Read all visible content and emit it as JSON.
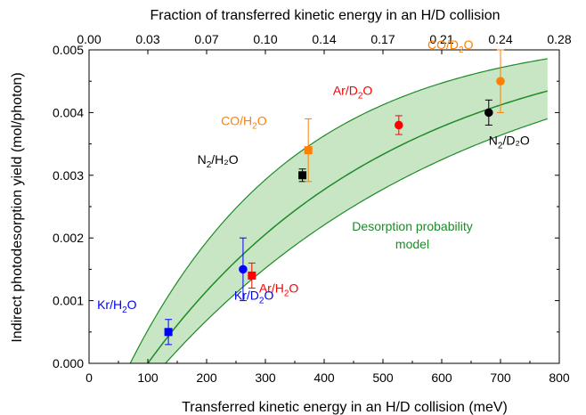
{
  "chart_data": {
    "type": "scatter",
    "xlabel": "Transferred kinetic energy in an H/D collision (meV)",
    "ylabel": "Indirect photodesorption yield (mol/photon)",
    "x2label": "Fraction of transferred kinetic energy in an H/D collision",
    "xlim": [
      0,
      800
    ],
    "ylim": [
      0,
      0.005
    ],
    "xticks": [
      "0",
      "100",
      "200",
      "300",
      "400",
      "500",
      "600",
      "700",
      "800"
    ],
    "yticks": [
      "0.000",
      "0.001",
      "0.002",
      "0.003",
      "0.004",
      "0.005"
    ],
    "x2ticks": [
      "0.00",
      "0.03",
      "0.07",
      "0.10",
      "0.14",
      "0.17",
      "0.21",
      "0.24",
      "0.28"
    ],
    "colors": {
      "band": "#c8e6c4",
      "model": "#1e8a2a",
      "kr": "#0000ff",
      "ar": "#ff0000",
      "co": "#ff8000",
      "n2": "#000000"
    },
    "points": [
      {
        "label": "Kr/H2O",
        "text": "Kr/H",
        "sub": "2",
        "tail": "O",
        "x": 135,
        "y": 0.0005,
        "err": 0.0002,
        "marker": "square",
        "color": "#0000ff"
      },
      {
        "label": "Kr/D2O",
        "text": "Kr/D",
        "sub": "2",
        "tail": "O",
        "x": 262,
        "y": 0.0015,
        "err": 0.0005,
        "marker": "circle",
        "color": "#0000ff"
      },
      {
        "label": "Ar/H2O",
        "text": "Ar/H",
        "sub": "2",
        "tail": "O",
        "x": 277,
        "y": 0.0014,
        "err": 0.0002,
        "marker": "square",
        "color": "#ff0000"
      },
      {
        "label": "N2/H2O",
        "text": "N",
        "sub": "2",
        "tail": "/H₂O",
        "x": 363,
        "y": 0.003,
        "err": 0.0001,
        "marker": "square",
        "color": "#000000"
      },
      {
        "label": "CO/H2O",
        "text": "CO/H",
        "sub": "2",
        "tail": "O",
        "x": 373,
        "y": 0.0034,
        "err": 0.0005,
        "marker": "square",
        "color": "#ff8000"
      },
      {
        "label": "Ar/D2O",
        "text": "Ar/D",
        "sub": "2",
        "tail": "O",
        "x": 527,
        "y": 0.0038,
        "err": 0.00015,
        "marker": "circle",
        "color": "#ff0000"
      },
      {
        "label": "N2/D2O",
        "text": "N",
        "sub": "2",
        "tail": "/D₂O",
        "x": 680,
        "y": 0.004,
        "err": 0.0002,
        "marker": "circle",
        "color": "#000000"
      },
      {
        "label": "CO/D2O",
        "text": "CO/D",
        "sub": "2",
        "tail": "O",
        "x": 700,
        "y": 0.0045,
        "err": 0.0005,
        "marker": "circle",
        "color": "#ff8000"
      }
    ],
    "model": {
      "label_line1": "Desorption probability",
      "label_line2": "model",
      "central": {
        "x0": 100,
        "ymax": 0.0054,
        "k": 0.0024
      },
      "upper": {
        "x0": 70,
        "ymax": 0.0053,
        "k": 0.0035
      },
      "lower": {
        "x0": 130,
        "ymax": 0.0055,
        "k": 0.0019
      },
      "xmax": 780
    }
  }
}
